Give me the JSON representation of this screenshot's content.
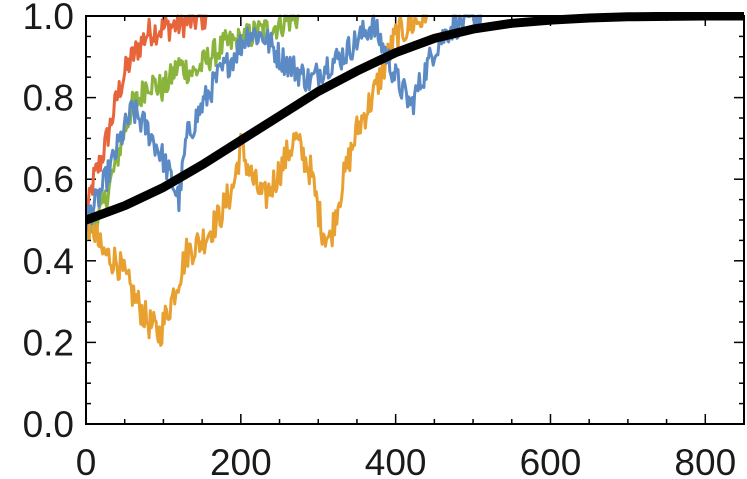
{
  "chart_data": {
    "type": "line",
    "title": "",
    "xlabel": "",
    "ylabel": "",
    "xlim": [
      0,
      850
    ],
    "ylim": [
      0,
      1
    ],
    "grid": false,
    "legend": "none",
    "x_ticks": [
      0,
      200,
      400,
      600,
      800
    ],
    "x_tick_labels": [
      "0",
      "200",
      "400",
      "600",
      "800"
    ],
    "y_ticks": [
      0,
      0.2,
      0.4,
      0.6,
      0.8,
      1.0
    ],
    "y_tick_labels": [
      "0.0",
      "0.2",
      "0.4",
      "0.6",
      "0.8",
      "1.0"
    ],
    "series": [
      {
        "color": "#e8643a",
        "noise": 0.035,
        "points": [
          [
            0,
            0.5
          ],
          [
            10,
            0.6
          ],
          [
            20,
            0.65
          ],
          [
            30,
            0.72
          ],
          [
            40,
            0.8
          ],
          [
            50,
            0.86
          ],
          [
            60,
            0.9
          ],
          [
            70,
            0.93
          ],
          [
            80,
            0.96
          ],
          [
            100,
            0.97
          ],
          [
            120,
            0.98
          ],
          [
            140,
            0.99
          ],
          [
            155,
            1.0
          ]
        ]
      },
      {
        "color": "#8ab43c",
        "noise": 0.035,
        "points": [
          [
            0,
            0.47
          ],
          [
            20,
            0.52
          ],
          [
            30,
            0.58
          ],
          [
            40,
            0.65
          ],
          [
            50,
            0.72
          ],
          [
            60,
            0.78
          ],
          [
            70,
            0.8
          ],
          [
            80,
            0.84
          ],
          [
            100,
            0.82
          ],
          [
            120,
            0.88
          ],
          [
            140,
            0.86
          ],
          [
            160,
            0.9
          ],
          [
            180,
            0.93
          ],
          [
            200,
            0.94
          ],
          [
            220,
            0.96
          ],
          [
            240,
            0.97
          ],
          [
            260,
            0.99
          ],
          [
            275,
            1.0
          ]
        ]
      },
      {
        "color": "#e8a030",
        "noise": 0.04,
        "points": [
          [
            0,
            0.5
          ],
          [
            10,
            0.48
          ],
          [
            20,
            0.42
          ],
          [
            40,
            0.4
          ],
          [
            60,
            0.32
          ],
          [
            80,
            0.25
          ],
          [
            95,
            0.22
          ],
          [
            110,
            0.3
          ],
          [
            130,
            0.42
          ],
          [
            150,
            0.45
          ],
          [
            170,
            0.5
          ],
          [
            190,
            0.58
          ],
          [
            200,
            0.68
          ],
          [
            215,
            0.6
          ],
          [
            230,
            0.55
          ],
          [
            250,
            0.62
          ],
          [
            270,
            0.7
          ],
          [
            290,
            0.62
          ],
          [
            305,
            0.48
          ],
          [
            315,
            0.45
          ],
          [
            330,
            0.58
          ],
          [
            350,
            0.72
          ],
          [
            370,
            0.8
          ],
          [
            390,
            0.9
          ],
          [
            400,
            0.95
          ],
          [
            420,
            0.98
          ],
          [
            440,
            1.0
          ]
        ]
      },
      {
        "color": "#5b8ac4",
        "noise": 0.035,
        "points": [
          [
            0,
            0.5
          ],
          [
            15,
            0.55
          ],
          [
            30,
            0.62
          ],
          [
            45,
            0.7
          ],
          [
            60,
            0.77
          ],
          [
            80,
            0.72
          ],
          [
            100,
            0.65
          ],
          [
            110,
            0.6
          ],
          [
            120,
            0.55
          ],
          [
            130,
            0.7
          ],
          [
            150,
            0.78
          ],
          [
            170,
            0.85
          ],
          [
            190,
            0.9
          ],
          [
            210,
            0.96
          ],
          [
            230,
            0.95
          ],
          [
            250,
            0.9
          ],
          [
            270,
            0.87
          ],
          [
            290,
            0.84
          ],
          [
            310,
            0.88
          ],
          [
            330,
            0.9
          ],
          [
            350,
            0.94
          ],
          [
            370,
            0.98
          ],
          [
            385,
            0.92
          ],
          [
            400,
            0.85
          ],
          [
            420,
            0.78
          ],
          [
            435,
            0.85
          ],
          [
            450,
            0.92
          ],
          [
            470,
            0.97
          ],
          [
            490,
            0.99
          ],
          [
            510,
            1.0
          ]
        ]
      },
      {
        "color": "#000000",
        "noise": 0,
        "points": [
          [
            0,
            0.5
          ],
          [
            50,
            0.535
          ],
          [
            100,
            0.58
          ],
          [
            150,
            0.635
          ],
          [
            200,
            0.695
          ],
          [
            250,
            0.755
          ],
          [
            300,
            0.815
          ],
          [
            350,
            0.865
          ],
          [
            400,
            0.91
          ],
          [
            450,
            0.945
          ],
          [
            500,
            0.968
          ],
          [
            550,
            0.982
          ],
          [
            600,
            0.99
          ],
          [
            650,
            0.995
          ],
          [
            700,
            0.998
          ],
          [
            750,
            0.999
          ],
          [
            800,
            1.0
          ],
          [
            850,
            1.0
          ]
        ]
      }
    ]
  }
}
